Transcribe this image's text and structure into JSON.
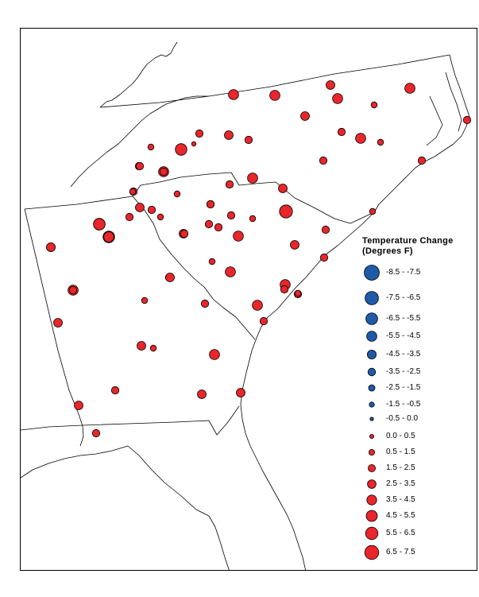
{
  "legend": {
    "title_line1": "Temperature Change",
    "title_line2": "(Degrees F)",
    "cool_color": "#1f5aa8",
    "warm_color": "#e8262b",
    "classes": [
      {
        "label": "-8.5 - -7.5",
        "sign": "cool"
      },
      {
        "label": "-7.5 - -6.5",
        "sign": "cool"
      },
      {
        "label": "-6.5 - -5.5",
        "sign": "cool"
      },
      {
        "label": "-5.5 - -4.5",
        "sign": "cool"
      },
      {
        "label": "-4.5 - -3.5",
        "sign": "cool"
      },
      {
        "label": "-3.5 - -2.5",
        "sign": "cool"
      },
      {
        "label": "-2.5 - -1.5",
        "sign": "cool"
      },
      {
        "label": "-1.5 - -0.5",
        "sign": "cool"
      },
      {
        "label": "-0.5 - 0.0",
        "sign": "cool"
      },
      {
        "label": "0.0 - 0.5",
        "sign": "warm"
      },
      {
        "label": "0.5 - 1.5",
        "sign": "warm"
      },
      {
        "label": "1.5 - 2.5",
        "sign": "warm"
      },
      {
        "label": "2.5 - 3.5",
        "sign": "warm"
      },
      {
        "label": "3.5 - 4.5",
        "sign": "warm"
      },
      {
        "label": "4.5 - 5.5",
        "sign": "warm"
      },
      {
        "label": "5.5 - 6.5",
        "sign": "warm"
      },
      {
        "label": "6.5 - 7.5",
        "sign": "warm"
      }
    ]
  },
  "stations": [
    {
      "class": 14
    },
    {
      "class": 14
    },
    {
      "class": 13
    },
    {
      "class": 14
    },
    {
      "class": 11
    },
    {
      "class": 14
    },
    {
      "class": 12
    },
    {
      "class": 13
    },
    {
      "class": 12
    },
    {
      "class": 14
    },
    {
      "class": 11
    },
    {
      "class": 12
    },
    {
      "class": 12
    },
    {
      "class": 12
    },
    {
      "class": 13
    },
    {
      "class": 10
    },
    {
      "class": 15
    },
    {
      "class": 12
    },
    {
      "class": 11
    },
    {
      "class": 12
    },
    {
      "class": 14
    },
    {
      "class": 12
    },
    {
      "class": 14
    },
    {
      "class": 13
    },
    {
      "class": 12
    },
    {
      "class": 11
    },
    {
      "class": 12
    },
    {
      "class": 13
    },
    {
      "class": 12
    },
    {
      "class": 11
    },
    {
      "class": 12
    },
    {
      "class": 12
    },
    {
      "class": 11
    },
    {
      "class": 15
    },
    {
      "class": 15
    },
    {
      "class": 16
    },
    {
      "class": 13
    },
    {
      "class": 13
    },
    {
      "class": 12
    },
    {
      "class": 14
    },
    {
      "class": 13
    },
    {
      "class": 12
    },
    {
      "class": 11
    },
    {
      "class": 12
    },
    {
      "class": 12
    },
    {
      "class": 12
    },
    {
      "class": 11
    },
    {
      "class": 12
    },
    {
      "class": 11
    },
    {
      "class": 14
    },
    {
      "class": 12
    },
    {
      "class": 12
    },
    {
      "class": 14
    },
    {
      "class": 14
    },
    {
      "class": 12
    },
    {
      "class": 11
    },
    {
      "class": 13
    },
    {
      "class": 11
    },
    {
      "class": 14
    },
    {
      "class": 12
    },
    {
      "class": 13
    },
    {
      "class": 13
    },
    {
      "class": 13
    },
    {
      "class": 12
    },
    {
      "class": 12
    },
    {
      "class": 11
    },
    {
      "class": 14
    },
    {
      "class": 12
    },
    {
      "class": 12
    },
    {
      "class": 11
    },
    {
      "class": 13
    },
    {
      "class": 12
    },
    {
      "class": 12
    },
    {
      "class": 15
    },
    {
      "class": 14
    },
    {
      "class": 13
    },
    {
      "class": 12
    },
    {
      "class": 13
    }
  ]
}
